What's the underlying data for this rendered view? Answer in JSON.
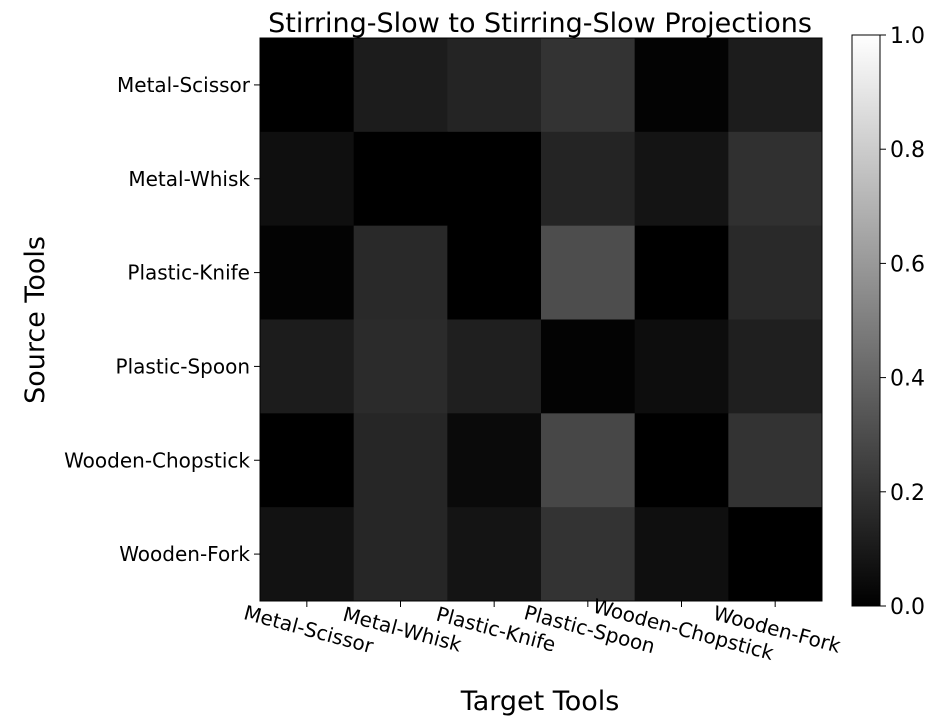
{
  "chart_data": {
    "type": "heatmap",
    "title": "Stirring-Slow to Stirring-Slow Projections",
    "xlabel": "Target Tools",
    "ylabel": "Source Tools",
    "x_categories": [
      "Metal-Scissor",
      "Metal-Whisk",
      "Plastic-Knife",
      "Plastic-Spoon",
      "Wooden-Chopstick",
      "Wooden-Fork"
    ],
    "y_categories": [
      "Metal-Scissor",
      "Metal-Whisk",
      "Plastic-Knife",
      "Plastic-Spoon",
      "Wooden-Chopstick",
      "Wooden-Fork"
    ],
    "values": [
      [
        0.0,
        0.11,
        0.14,
        0.2,
        0.01,
        0.11
      ],
      [
        0.06,
        0.0,
        0.0,
        0.14,
        0.08,
        0.19
      ],
      [
        0.01,
        0.16,
        0.0,
        0.3,
        0.0,
        0.16
      ],
      [
        0.11,
        0.17,
        0.12,
        0.01,
        0.05,
        0.12
      ],
      [
        0.0,
        0.15,
        0.04,
        0.28,
        0.0,
        0.2
      ],
      [
        0.07,
        0.15,
        0.08,
        0.2,
        0.06,
        0.0
      ]
    ],
    "colormap": "gray",
    "colorbar": {
      "range": [
        0.0,
        1.0
      ],
      "ticks": [
        "0.0",
        "0.2",
        "0.4",
        "0.6",
        "0.8",
        "1.0"
      ]
    },
    "grid": false
  }
}
